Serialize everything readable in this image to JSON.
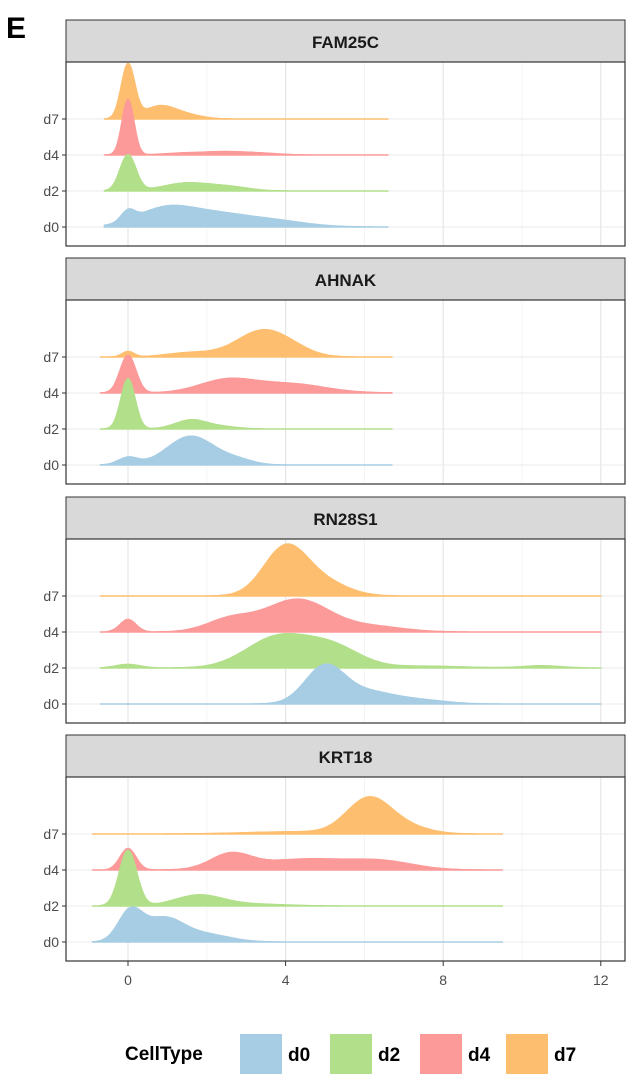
{
  "panel_label": "E",
  "chart_data": {
    "type": "ridgeline",
    "xlim": [
      -1.5,
      13.4
    ],
    "xticks": [
      0,
      4,
      8,
      12
    ],
    "grid": true,
    "legend": {
      "position": "bottom",
      "title": "CellType",
      "entries": [
        {
          "name": "d0",
          "color": "#a6cde3"
        },
        {
          "name": "d2",
          "color": "#b2df8a"
        },
        {
          "name": "d4",
          "color": "#fb9a99"
        },
        {
          "name": "d7",
          "color": "#fdbf6f"
        }
      ]
    },
    "panels": [
      {
        "title": "FAM25C",
        "range": [
          -0.6,
          6.6
        ],
        "ridges": [
          {
            "celltype": "d0",
            "peaks": [
              [
                0,
                0.28,
                0.17
              ],
              [
                0.9,
                0.45,
                0.7
              ],
              [
                2.2,
                0.35,
                0.9
              ],
              [
                3.8,
                0.14,
                0.8
              ]
            ]
          },
          {
            "celltype": "d2",
            "peaks": [
              [
                0,
                1.0,
                0.2
              ],
              [
                1.5,
                0.22,
                0.6
              ],
              [
                2.6,
                0.1,
                0.5
              ]
            ]
          },
          {
            "celltype": "d4",
            "peaks": [
              [
                0,
                1.55,
                0.15
              ],
              [
                1.4,
                0.05,
                0.5
              ],
              [
                2.4,
                0.08,
                0.5
              ],
              [
                3.3,
                0.05,
                0.5
              ]
            ]
          },
          {
            "celltype": "d7",
            "peaks": [
              [
                0,
                1.5,
                0.17
              ],
              [
                0.8,
                0.35,
                0.4
              ],
              [
                1.5,
                0.1,
                0.4
              ]
            ]
          }
        ]
      },
      {
        "title": "AHNAK",
        "range": [
          -0.7,
          6.7
        ],
        "ridges": [
          {
            "celltype": "d0",
            "peaks": [
              [
                0,
                0.2,
                0.25
              ],
              [
                1.6,
                0.8,
                0.6
              ],
              [
                2.8,
                0.12,
                0.4
              ]
            ]
          },
          {
            "celltype": "d2",
            "peaks": [
              [
                0,
                1.4,
                0.18
              ],
              [
                1.6,
                0.25,
                0.4
              ],
              [
                2.4,
                0.06,
                0.4
              ]
            ]
          },
          {
            "celltype": "d4",
            "peaks": [
              [
                0,
                1.05,
                0.2
              ],
              [
                2.5,
                0.35,
                0.7
              ],
              [
                4.1,
                0.25,
                0.9
              ]
            ]
          },
          {
            "celltype": "d7",
            "peaks": [
              [
                0,
                0.15,
                0.15
              ],
              [
                1.6,
                0.12,
                0.6
              ],
              [
                3.4,
                0.72,
                0.65
              ],
              [
                4.2,
                0.12,
                0.5
              ]
            ]
          }
        ]
      },
      {
        "title": "RN28S1",
        "range": [
          -0.7,
          12.0
        ],
        "ridges": [
          {
            "celltype": "d0",
            "peaks": [
              [
                5.0,
                1.05,
                0.5
              ],
              [
                6.1,
                0.3,
                0.6
              ],
              [
                7.3,
                0.12,
                0.7
              ]
            ]
          },
          {
            "celltype": "d2",
            "peaks": [
              [
                0,
                0.1,
                0.3
              ],
              [
                3.8,
                0.85,
                0.8
              ],
              [
                5.2,
                0.55,
                0.7
              ],
              [
                7.5,
                0.05,
                1.0
              ],
              [
                10.5,
                0.06,
                0.5
              ]
            ]
          },
          {
            "celltype": "d4",
            "peaks": [
              [
                0,
                0.35,
                0.2
              ],
              [
                2.6,
                0.35,
                0.6
              ],
              [
                4.3,
                0.9,
                0.8
              ],
              [
                6.2,
                0.15,
                0.8
              ]
            ]
          },
          {
            "celltype": "d7",
            "peaks": [
              [
                4.0,
                1.35,
                0.55
              ],
              [
                5.0,
                0.35,
                0.6
              ]
            ]
          }
        ]
      },
      {
        "title": "KRT18",
        "range": [
          -0.9,
          9.5
        ],
        "ridges": [
          {
            "celltype": "d0",
            "peaks": [
              [
                0.05,
                0.8,
                0.3
              ],
              [
                0.9,
                0.65,
                0.5
              ],
              [
                2.0,
                0.2,
                0.6
              ]
            ]
          },
          {
            "celltype": "d2",
            "peaks": [
              [
                0,
                1.55,
                0.22
              ],
              [
                1.8,
                0.3,
                0.6
              ],
              [
                3.2,
                0.05,
                0.8
              ]
            ]
          },
          {
            "celltype": "d4",
            "peaks": [
              [
                0,
                0.6,
                0.2
              ],
              [
                2.6,
                0.4,
                0.5
              ],
              [
                4.5,
                0.3,
                1.2
              ],
              [
                6.5,
                0.2,
                0.8
              ]
            ]
          },
          {
            "celltype": "d7",
            "peaks": [
              [
                6.1,
                0.95,
                0.55
              ],
              [
                7.0,
                0.2,
                0.6
              ],
              [
                4.2,
                0.06,
                1.2
              ]
            ]
          }
        ]
      }
    ]
  }
}
